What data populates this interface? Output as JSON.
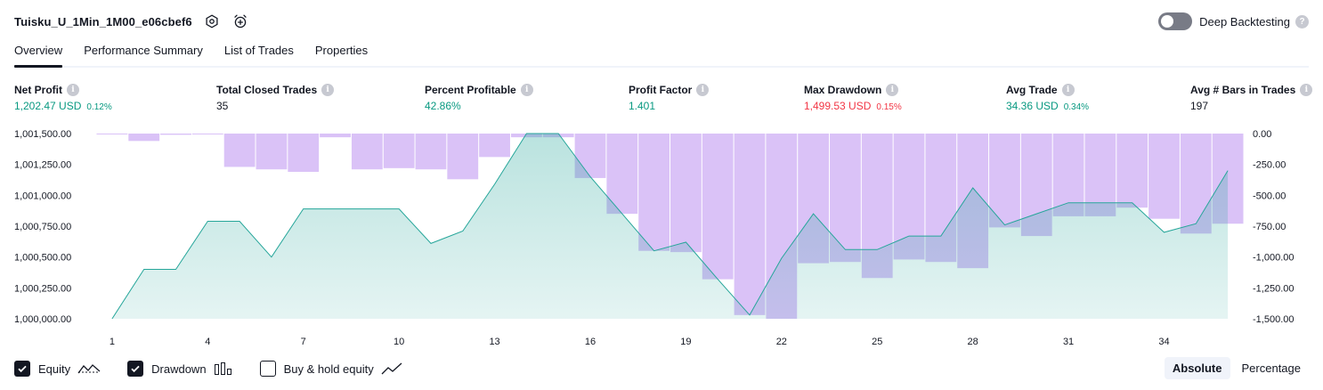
{
  "header": {
    "strategy_name": "Tuisku_U_1Min_1M00_e06cbef6",
    "icons": [
      "settings-icon",
      "add-alert-icon"
    ]
  },
  "deep_backtesting": {
    "label": "Deep Backtesting",
    "enabled": false,
    "help": "?"
  },
  "tabs": [
    {
      "label": "Overview",
      "active": true
    },
    {
      "label": "Performance Summary",
      "active": false
    },
    {
      "label": "List of Trades",
      "active": false
    },
    {
      "label": "Properties",
      "active": false
    }
  ],
  "metrics": [
    {
      "label": "Net Profit",
      "value": "1,202.47 USD",
      "pct": "0.12%",
      "tone": "pos"
    },
    {
      "label": "Total Closed Trades",
      "value": "35",
      "pct": "",
      "tone": "neu"
    },
    {
      "label": "Percent Profitable",
      "value": "42.86%",
      "pct": "",
      "tone": "pos"
    },
    {
      "label": "Profit Factor",
      "value": "1.401",
      "pct": "",
      "tone": "pos"
    },
    {
      "label": "Max Drawdown",
      "value": "1,499.53 USD",
      "pct": "0.15%",
      "tone": "neg"
    },
    {
      "label": "Avg Trade",
      "value": "34.36 USD",
      "pct": "0.34%",
      "tone": "pos"
    },
    {
      "label": "Avg # Bars in Trades",
      "value": "197",
      "pct": "",
      "tone": "neu"
    }
  ],
  "info_glyph": "i",
  "chart_data": {
    "type": "area",
    "x": [
      1,
      2,
      3,
      4,
      5,
      6,
      7,
      8,
      9,
      10,
      11,
      12,
      13,
      14,
      15,
      16,
      17,
      18,
      19,
      20,
      21,
      22,
      23,
      24,
      25,
      26,
      27,
      28,
      29,
      30,
      31,
      32,
      33,
      34,
      35,
      36
    ],
    "x_ticks": [
      "1",
      "4",
      "7",
      "10",
      "13",
      "16",
      "19",
      "22",
      "25",
      "28",
      "31",
      "34"
    ],
    "left_axis": {
      "ticks": [
        "1,000,000.00",
        "1,000,250.00",
        "1,000,500.00",
        "1,000,750.00",
        "1,001,000.00",
        "1,001,250.00",
        "1,001,500.00"
      ],
      "ylim": [
        1000000,
        1001500
      ]
    },
    "right_axis": {
      "ticks": [
        "-1,500.00",
        "-1,250.00",
        "-1,000.00",
        "-750.00",
        "-500.00",
        "-250.00",
        "0.00"
      ],
      "ylim": [
        -1500,
        0
      ]
    },
    "series": [
      {
        "name": "Equity",
        "axis": "left",
        "color": "#26a69a",
        "values": [
          1000000,
          1000400,
          1000400,
          1000790,
          1000790,
          1000500,
          1000890,
          1000890,
          1000890,
          1000890,
          1000610,
          1000710,
          1001090,
          1001500,
          1001500,
          1001150,
          1000850,
          1000550,
          1000620,
          1000320,
          1000030,
          1000490,
          1000850,
          1000560,
          1000560,
          1000670,
          1000670,
          1001060,
          1000760,
          1000850,
          1000940,
          1000940,
          1000940,
          1000700,
          1000770,
          1001200
        ]
      },
      {
        "name": "Drawdown",
        "axis": "right",
        "color": "#d1b3f5",
        "values": [
          0,
          -60,
          -10,
          0,
          -270,
          -290,
          -310,
          -30,
          -290,
          -280,
          -290,
          -370,
          -190,
          -30,
          -30,
          -360,
          -650,
          -950,
          -960,
          -1180,
          -1470,
          -1500,
          -1050,
          -1040,
          -1170,
          -1020,
          -1040,
          -1090,
          -760,
          -830,
          -670,
          -670,
          -600,
          -690,
          -810,
          -730
        ]
      }
    ],
    "grid": false
  },
  "legend": [
    {
      "label": "Equity",
      "checked": true,
      "glyph": "equity-line-icon"
    },
    {
      "label": "Drawdown",
      "checked": true,
      "glyph": "drawdown-bars-icon"
    },
    {
      "label": "Buy & hold equity",
      "checked": false,
      "glyph": "buy-hold-line-icon"
    }
  ],
  "mode": {
    "options": [
      "Absolute",
      "Percentage"
    ],
    "selected": "Absolute"
  }
}
